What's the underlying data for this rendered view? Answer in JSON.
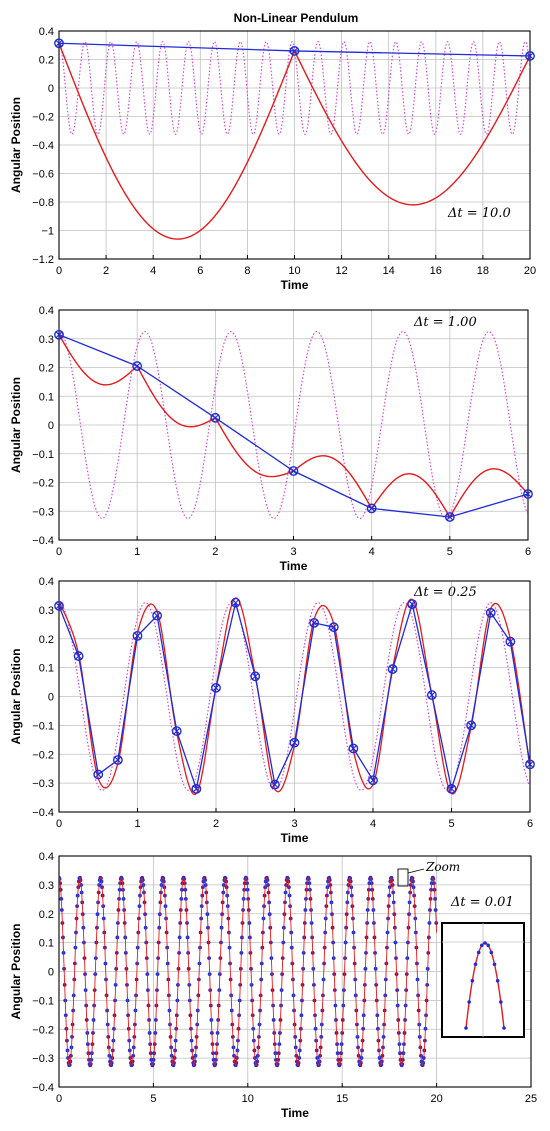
{
  "figure_title": "Non-Linear Pendulum",
  "colors": {
    "reference": "#e41a1c",
    "numeric": "#1f2bd6",
    "dotted": "#d43cd8",
    "grid": "#c0c0c0",
    "axis": "#000000"
  },
  "chart_data": [
    {
      "type": "line",
      "title": "Non-Linear Pendulum",
      "xlabel": "Time",
      "ylabel": "Angular Position",
      "annotation": "Δt = 10.0",
      "xlim": [
        0,
        20
      ],
      "ylim": [
        -1.2,
        0.4
      ],
      "xticks": [
        0,
        2,
        4,
        6,
        8,
        10,
        12,
        14,
        16,
        18,
        20
      ],
      "yticks": [
        -1.2,
        -1,
        -0.8,
        -0.6,
        -0.4,
        -0.2,
        0,
        0.2,
        0.4
      ],
      "ytick_labels": [
        "−1.2",
        "−1",
        "−0.8",
        "−0.6",
        "−0.4",
        "−0.2",
        "0",
        "0.2",
        "0.4"
      ],
      "grid": true,
      "reference_period": 1.1,
      "series": [
        {
          "style": "markers-line",
          "x": [
            0,
            10,
            20
          ],
          "y": [
            0.314,
            0.26,
            0.225
          ]
        },
        {
          "style": "arcs",
          "x": [
            0,
            10,
            20
          ],
          "y": [
            0.314,
            0.26,
            0.225
          ],
          "arc_min": [
            -1.06,
            -0.82
          ]
        }
      ]
    },
    {
      "type": "line",
      "xlabel": "Time",
      "ylabel": "Angular Position",
      "annotation": "Δt = 1.00",
      "xlim": [
        0,
        6
      ],
      "ylim": [
        -0.4,
        0.4
      ],
      "xticks": [
        0,
        1,
        2,
        3,
        4,
        5,
        6
      ],
      "yticks": [
        -0.4,
        -0.3,
        -0.2,
        -0.1,
        0,
        0.1,
        0.2,
        0.3,
        0.4
      ],
      "ytick_labels": [
        "−0.4",
        "−0.3",
        "−0.2",
        "−0.1",
        "0",
        "0.1",
        "0.2",
        "0.3",
        "0.4"
      ],
      "grid": true,
      "reference_period": 1.1,
      "series": [
        {
          "style": "markers-line",
          "x": [
            0,
            1,
            2,
            3,
            4,
            5,
            6
          ],
          "y": [
            0.314,
            0.205,
            0.025,
            -0.16,
            -0.29,
            -0.32,
            -0.24
          ]
        },
        {
          "style": "arcs",
          "x": [
            0,
            1,
            2,
            3,
            4,
            5,
            6
          ],
          "y": [
            0.314,
            0.205,
            0.025,
            -0.16,
            -0.29,
            -0.32,
            -0.24
          ],
          "arc_min": [
            0.145,
            0.01,
            -0.16,
            -0.115,
            -0.17,
            -0.155
          ]
        }
      ]
    },
    {
      "type": "line",
      "xlabel": "Time",
      "ylabel": "Angular Position",
      "annotation": "Δt = 0.25",
      "xlim": [
        0,
        6
      ],
      "ylim": [
        -0.4,
        0.4
      ],
      "xticks": [
        0,
        1,
        2,
        3,
        4,
        5,
        6
      ],
      "yticks": [
        -0.4,
        -0.3,
        -0.2,
        -0.1,
        0,
        0.1,
        0.2,
        0.3,
        0.4
      ],
      "ytick_labels": [
        "−0.4",
        "−0.3",
        "−0.2",
        "−0.1",
        "0",
        "0.1",
        "0.2",
        "0.3",
        "0.4"
      ],
      "grid": true,
      "reference_period": 1.1,
      "series": [
        {
          "style": "markers-line",
          "x": [
            0,
            0.25,
            0.5,
            0.75,
            1.0,
            1.25,
            1.5,
            1.75,
            2.0,
            2.25,
            2.5,
            2.75,
            3.0,
            3.25,
            3.5,
            3.75,
            4.0,
            4.25,
            4.5,
            4.75,
            5.0,
            5.25,
            5.5,
            5.75,
            6.0
          ],
          "y": [
            0.314,
            0.14,
            -0.27,
            -0.22,
            0.21,
            0.28,
            -0.12,
            -0.32,
            0.03,
            0.325,
            0.07,
            -0.305,
            -0.16,
            0.255,
            0.24,
            -0.18,
            -0.29,
            0.095,
            0.32,
            0.005,
            -0.32,
            -0.1,
            0.29,
            0.19,
            -0.235
          ]
        },
        {
          "style": "smooth-red"
        }
      ]
    },
    {
      "type": "line",
      "xlabel": "Time",
      "ylabel": "Angular Position",
      "annotation": "Δt = 0.01",
      "inset_label": "Zoom",
      "xlim": [
        0,
        25
      ],
      "ylim": [
        -0.4,
        0.4
      ],
      "xticks": [
        0,
        5,
        10,
        15,
        20,
        25
      ],
      "yticks": [
        -0.4,
        -0.3,
        -0.2,
        -0.1,
        0,
        0.1,
        0.2,
        0.3,
        0.4
      ],
      "ytick_labels": [
        "−0.4",
        "−0.3",
        "−0.2",
        "−0.1",
        "0",
        "0.1",
        "0.2",
        "0.3",
        "0.4"
      ],
      "grid": true,
      "reference_period": 1.1,
      "series": [
        {
          "style": "dense-markers",
          "x_range": [
            0,
            20
          ],
          "step": 0.01
        }
      ]
    }
  ]
}
